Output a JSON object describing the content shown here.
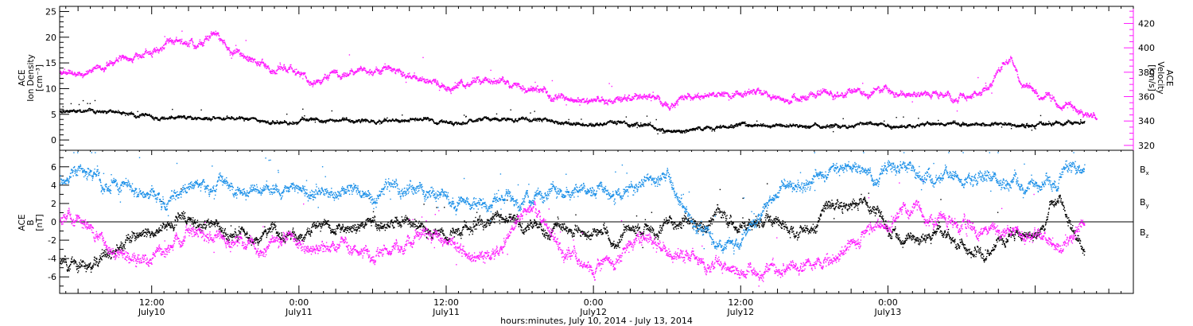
{
  "chart_data": [
    {
      "type": "scatter",
      "panel": "top",
      "ylabel_lines": [
        "ACE",
        "Ion Density",
        "[cm⁻³]"
      ],
      "ylim": [
        -2,
        26
      ],
      "yticks": [
        0,
        5,
        10,
        15,
        20,
        25
      ],
      "y2label_lines": [
        "ACE",
        "Velocity",
        "[km/s]"
      ],
      "y2lim": [
        316,
        434
      ],
      "y2ticks": [
        320,
        340,
        360,
        380,
        400,
        420
      ],
      "x_unit": "hours since 2014-07-10 00:00 UT",
      "xlim": [
        4.5,
        92
      ],
      "series": [
        {
          "axis": "left",
          "color": "#000000",
          "keypoints": [
            [
              4.5,
              5.5
            ],
            [
              9,
              5.4
            ],
            [
              12,
              4.7
            ],
            [
              15,
              4.1
            ],
            [
              20,
              4.0
            ],
            [
              24,
              3.7
            ],
            [
              30,
              3.9
            ],
            [
              36,
              3.8
            ],
            [
              42,
              4.0
            ],
            [
              48,
              3.3
            ],
            [
              52,
              3.1
            ],
            [
              54,
              1.6
            ],
            [
              60,
              3.0
            ],
            [
              66,
              3.1
            ],
            [
              72,
              3.1
            ],
            [
              75,
              3.0
            ],
            [
              78,
              3.2
            ],
            [
              82,
              3.0
            ],
            [
              86,
              3.3
            ],
            [
              88,
              3.2
            ]
          ]
        },
        {
          "axis": "right",
          "color": "#ff1aff",
          "keypoints": [
            [
              4.5,
              382
            ],
            [
              7,
              380
            ],
            [
              9,
              390
            ],
            [
              12,
              398
            ],
            [
              14,
              407
            ],
            [
              15.5,
              401
            ],
            [
              17,
              413
            ],
            [
              19,
              398
            ],
            [
              21,
              390
            ],
            [
              24,
              378
            ],
            [
              25,
              368
            ],
            [
              27,
              384
            ],
            [
              30,
              383
            ],
            [
              33,
              378
            ],
            [
              36,
              370
            ],
            [
              39,
              375
            ],
            [
              42,
              368
            ],
            [
              45,
              360
            ],
            [
              48,
              356
            ],
            [
              51,
              360
            ],
            [
              54,
              354
            ],
            [
              57,
              360
            ],
            [
              60,
              364
            ],
            [
              63,
              360
            ],
            [
              66,
              362
            ],
            [
              69,
              363
            ],
            [
              72,
              362
            ],
            [
              75,
              360
            ],
            [
              78,
              358
            ],
            [
              80,
              365
            ],
            [
              81,
              383
            ],
            [
              82,
              390
            ],
            [
              83,
              370
            ],
            [
              85,
              358
            ],
            [
              88,
              350
            ],
            [
              89,
              340
            ]
          ]
        }
      ]
    },
    {
      "type": "scatter",
      "panel": "bottom",
      "ylabel_lines": [
        "ACE",
        "B",
        "[nT]"
      ],
      "ylim": [
        -7.8,
        7.8
      ],
      "yticks": [
        -6,
        -4,
        -2,
        0,
        2,
        4,
        6
      ],
      "x_unit": "hours since 2014-07-10 00:00 UT",
      "xlim": [
        4.5,
        92
      ],
      "xticks": [
        {
          "x": 12,
          "time": "12:00",
          "date": "July10"
        },
        {
          "x": 24,
          "time": "0:00",
          "date": "July11"
        },
        {
          "x": 36,
          "time": "12:00",
          "date": "July11"
        },
        {
          "x": 48,
          "time": "0:00",
          "date": "July12"
        },
        {
          "x": 60,
          "time": "12:00",
          "date": "July12"
        },
        {
          "x": 72,
          "time": "0:00",
          "date": "July13"
        }
      ],
      "series": [
        {
          "name": "B",
          "subscript": "x",
          "color": "#000000",
          "keypoints": [
            [
              4.5,
              -4.5
            ],
            [
              7,
              -4.3
            ],
            [
              9,
              -2.5
            ],
            [
              12,
              -1.5
            ],
            [
              15,
              0
            ],
            [
              17,
              -0.5
            ],
            [
              20,
              -2.0
            ],
            [
              24,
              -1.5
            ],
            [
              28,
              -0.5
            ],
            [
              32,
              0
            ],
            [
              36,
              -1.5
            ],
            [
              38,
              -0.5
            ],
            [
              40,
              0.5
            ],
            [
              42,
              -0.5
            ],
            [
              44,
              -1.0
            ],
            [
              48,
              -1.0
            ],
            [
              50,
              -2.5
            ],
            [
              52,
              -1.0
            ],
            [
              54,
              0.5
            ],
            [
              56,
              1.0
            ],
            [
              58,
              0.5
            ],
            [
              60,
              -0.5
            ],
            [
              62,
              0
            ],
            [
              64,
              -0.5
            ],
            [
              66,
              0
            ],
            [
              68,
              1.5
            ],
            [
              70,
              3.0
            ],
            [
              72,
              0
            ],
            [
              74,
              -2.5
            ],
            [
              76,
              -1.5
            ],
            [
              78,
              -2.5
            ],
            [
              80,
              -3.5
            ],
            [
              82,
              -2.0
            ],
            [
              84,
              -1.0
            ],
            [
              86,
              2.0
            ],
            [
              88,
              -2.5
            ]
          ]
        },
        {
          "name": "B",
          "subscript": "y",
          "color": "#1a8fe8",
          "keypoints": [
            [
              4.5,
              4.8
            ],
            [
              6,
              6.0
            ],
            [
              8,
              4.0
            ],
            [
              10,
              3.5
            ],
            [
              12,
              3.5
            ],
            [
              14,
              4.0
            ],
            [
              16,
              4.5
            ],
            [
              18,
              4.0
            ],
            [
              20,
              3.5
            ],
            [
              22,
              3.5
            ],
            [
              24,
              3.5
            ],
            [
              26,
              3.3
            ],
            [
              28,
              3.5
            ],
            [
              30,
              4.0
            ],
            [
              32,
              3.8
            ],
            [
              34,
              3.5
            ],
            [
              36,
              3.0
            ],
            [
              38,
              3.0
            ],
            [
              40,
              2.5
            ],
            [
              42,
              2.5
            ],
            [
              44,
              3.0
            ],
            [
              46,
              3.5
            ],
            [
              48,
              3.5
            ],
            [
              50,
              3.0
            ],
            [
              52,
              4.5
            ],
            [
              54,
              4.5
            ],
            [
              56,
              -0.5
            ],
            [
              58,
              -2.0
            ],
            [
              60,
              -2.0
            ],
            [
              62,
              2.5
            ],
            [
              64,
              5.0
            ],
            [
              66,
              5.5
            ],
            [
              68,
              6.5
            ],
            [
              70,
              6.0
            ],
            [
              72,
              5.5
            ],
            [
              74,
              5.0
            ],
            [
              76,
              5.5
            ],
            [
              78,
              5.5
            ],
            [
              80,
              4.5
            ],
            [
              82,
              4.0
            ],
            [
              84,
              4.0
            ],
            [
              86,
              4.5
            ],
            [
              88,
              5.2
            ]
          ]
        },
        {
          "name": "B",
          "subscript": "z",
          "color": "#ff1aff",
          "keypoints": [
            [
              4.5,
              0
            ],
            [
              6,
              -1.0
            ],
            [
              8,
              -3.0
            ],
            [
              10,
              -4.5
            ],
            [
              12,
              -3.5
            ],
            [
              14,
              -2.0
            ],
            [
              16,
              -1.5
            ],
            [
              18,
              -2.0
            ],
            [
              20,
              -3.0
            ],
            [
              22,
              -2.5
            ],
            [
              24,
              -2.0
            ],
            [
              26,
              -3.0
            ],
            [
              28,
              -2.5
            ],
            [
              30,
              -3.0
            ],
            [
              32,
              -2.5
            ],
            [
              34,
              -2.0
            ],
            [
              36,
              -3.0
            ],
            [
              38,
              -3.5
            ],
            [
              40,
              -3.5
            ],
            [
              42,
              0
            ],
            [
              44,
              0
            ],
            [
              46,
              -3.5
            ],
            [
              48,
              -5.5
            ],
            [
              50,
              -4.5
            ],
            [
              52,
              -2.0
            ],
            [
              54,
              -2.0
            ],
            [
              56,
              -5.0
            ],
            [
              58,
              -5.5
            ],
            [
              60,
              -5.5
            ],
            [
              62,
              -5.0
            ],
            [
              64,
              -5.0
            ],
            [
              66,
              -4.5
            ],
            [
              68,
              -3.0
            ],
            [
              70,
              -0.5
            ],
            [
              72,
              0
            ],
            [
              74,
              1.0
            ],
            [
              76,
              0.5
            ],
            [
              78,
              -0.5
            ],
            [
              80,
              0
            ],
            [
              82,
              -0.5
            ],
            [
              84,
              -1.0
            ],
            [
              86,
              -2.5
            ],
            [
              88,
              0
            ]
          ]
        }
      ]
    }
  ],
  "x_axis_title": "hours:minutes, July 10, 2014 - July 13, 2014"
}
